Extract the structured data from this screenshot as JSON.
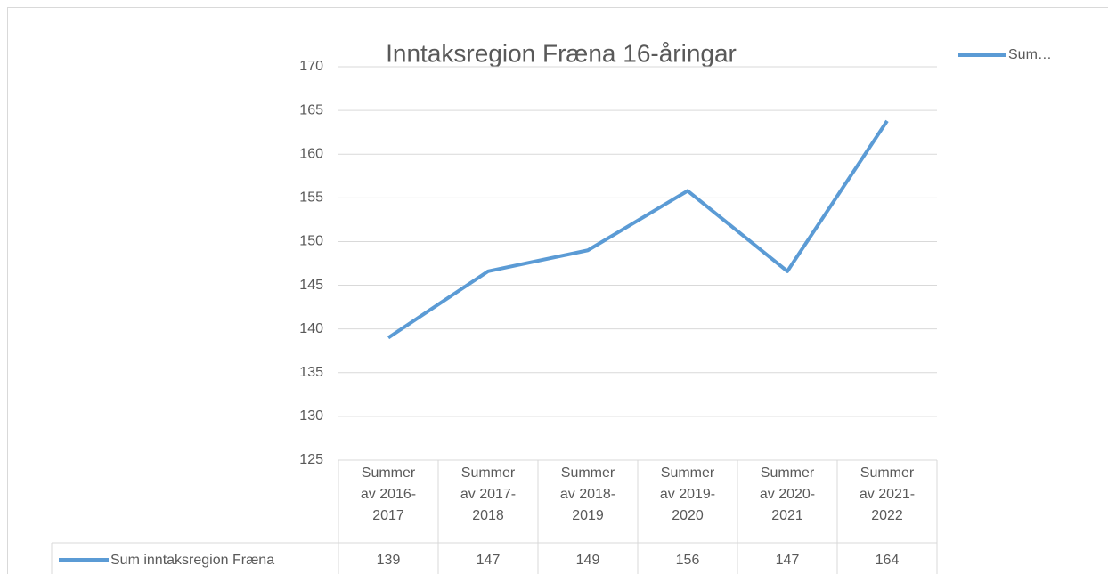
{
  "chart_data": {
    "type": "line",
    "title": "Inntaksregion Fræna 16-åringar",
    "categories": [
      "Summer av 2016-2017",
      "Summer av 2017-2018",
      "Summer av 2018-2019",
      "Summer av 2019-2020",
      "Summer av 2020-2021",
      "Summer av 2021-2022"
    ],
    "series": [
      {
        "name": "Sum inntaksregion Fræna",
        "legend_label": "Sum…",
        "color": "#5b9bd5",
        "values": [
          139,
          146.6,
          149,
          155.8,
          146.6,
          163.8
        ],
        "value_labels": [
          "139",
          "147",
          "149",
          "156",
          "147",
          "164"
        ]
      }
    ],
    "ylim": [
      125,
      170
    ],
    "yticks": [
      125,
      130,
      135,
      140,
      145,
      150,
      155,
      160,
      165,
      170
    ],
    "grid": true,
    "legend": "top-right",
    "data_table": true
  }
}
